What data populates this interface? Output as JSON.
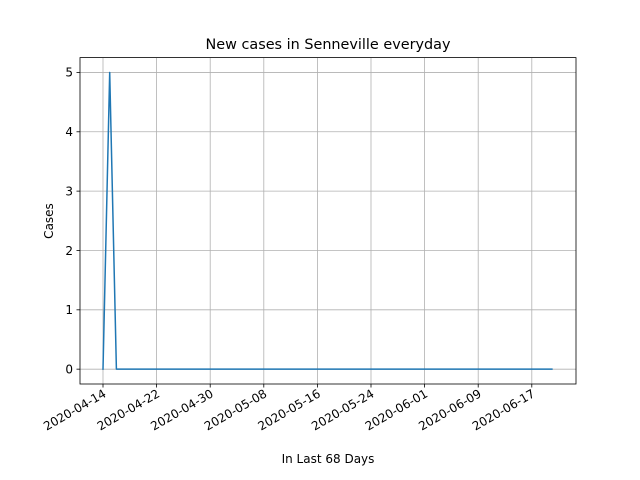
{
  "chart_data": {
    "type": "line",
    "title": "New cases in Senneville everyday",
    "xlabel": "In Last 68 Days",
    "ylabel": "Cases",
    "x_start_date": "2020-04-14",
    "x_tick_labels": [
      "2020-04-14",
      "2020-04-22",
      "2020-04-30",
      "2020-05-08",
      "2020-05-16",
      "2020-05-24",
      "2020-06-01",
      "2020-06-09",
      "2020-06-17"
    ],
    "y_tick_labels": [
      "0",
      "1",
      "2",
      "3",
      "4",
      "5"
    ],
    "ylim": [
      -0.25,
      5.25
    ],
    "grid": true,
    "series": [
      {
        "color": "#1f77b4",
        "x": [
          "2020-04-14",
          "2020-04-15",
          "2020-04-16",
          "2020-04-17",
          "2020-04-18",
          "2020-04-19",
          "2020-04-20",
          "2020-04-21",
          "2020-04-22",
          "2020-04-23",
          "2020-04-24",
          "2020-04-25",
          "2020-04-26",
          "2020-04-27",
          "2020-04-28",
          "2020-04-29",
          "2020-04-30",
          "2020-05-01",
          "2020-05-02",
          "2020-05-03",
          "2020-05-04",
          "2020-05-05",
          "2020-05-06",
          "2020-05-07",
          "2020-05-08",
          "2020-05-09",
          "2020-05-10",
          "2020-05-11",
          "2020-05-12",
          "2020-05-13",
          "2020-05-14",
          "2020-05-15",
          "2020-05-16",
          "2020-05-17",
          "2020-05-18",
          "2020-05-19",
          "2020-05-20",
          "2020-05-21",
          "2020-05-22",
          "2020-05-23",
          "2020-05-24",
          "2020-05-25",
          "2020-05-26",
          "2020-05-27",
          "2020-05-28",
          "2020-05-29",
          "2020-05-30",
          "2020-05-31",
          "2020-06-01",
          "2020-06-02",
          "2020-06-03",
          "2020-06-04",
          "2020-06-05",
          "2020-06-06",
          "2020-06-07",
          "2020-06-08",
          "2020-06-09",
          "2020-06-10",
          "2020-06-11",
          "2020-06-12",
          "2020-06-13",
          "2020-06-14",
          "2020-06-15",
          "2020-06-16",
          "2020-06-17",
          "2020-06-18",
          "2020-06-19",
          "2020-06-20"
        ],
        "values": [
          0,
          5,
          0,
          0,
          0,
          0,
          0,
          0,
          0,
          0,
          0,
          0,
          0,
          0,
          0,
          0,
          0,
          0,
          0,
          0,
          0,
          0,
          0,
          0,
          0,
          0,
          0,
          0,
          0,
          0,
          0,
          0,
          0,
          0,
          0,
          0,
          0,
          0,
          0,
          0,
          0,
          0,
          0,
          0,
          0,
          0,
          0,
          0,
          0,
          0,
          0,
          0,
          0,
          0,
          0,
          0,
          0,
          0,
          0,
          0,
          0,
          0,
          0,
          0,
          0,
          0,
          0,
          0
        ]
      }
    ]
  }
}
